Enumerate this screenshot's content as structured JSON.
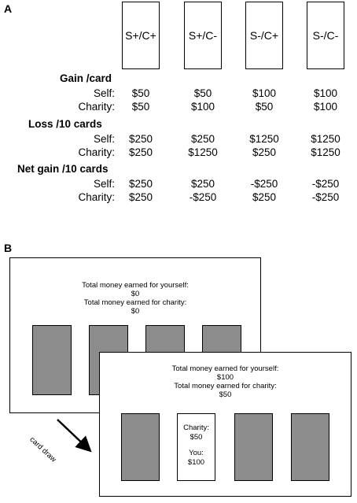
{
  "panel_a": {
    "label": "A",
    "cards": [
      "S+/C+",
      "S+/C-",
      "S-/C+",
      "S-/C-"
    ],
    "sections": [
      {
        "title": "Gain /card",
        "rows": [
          {
            "label": "Self:",
            "values": [
              "$50",
              "$50",
              "$100",
              "$100"
            ]
          },
          {
            "label": "Charity:",
            "values": [
              "$50",
              "$100",
              "$50",
              "$100"
            ]
          }
        ]
      },
      {
        "title": "Loss /10 cards",
        "rows": [
          {
            "label": "Self:",
            "values": [
              "$250",
              "$250",
              "$1250",
              "$1250"
            ]
          },
          {
            "label": "Charity:",
            "values": [
              "$250",
              "$1250",
              "$250",
              "$1250"
            ]
          }
        ]
      },
      {
        "title": "Net gain /10 cards",
        "rows": [
          {
            "label": "Self:",
            "values": [
              "$250",
              "$250",
              "-$250",
              "-$250"
            ]
          },
          {
            "label": "Charity:",
            "values": [
              "$250",
              "-$250",
              "$250",
              "-$250"
            ]
          }
        ]
      }
    ]
  },
  "panel_b": {
    "label": "B",
    "screen1": {
      "self_label": "Total money earned for yourself:",
      "self_value": "$0",
      "charity_label": "Total money earned for charity:",
      "charity_value": "$0"
    },
    "screen2": {
      "self_label": "Total money earned for yourself:",
      "self_value": "$100",
      "charity_label": "Total money earned for charity:",
      "charity_value": "$50",
      "flipped_card": {
        "charity_label": "Charity:",
        "charity_value": "$50",
        "you_label": "You:",
        "you_value": "$100"
      }
    },
    "arrow_label": "card draw"
  },
  "colors": {
    "card_gray": "#8c8c8c",
    "border": "#000000"
  }
}
